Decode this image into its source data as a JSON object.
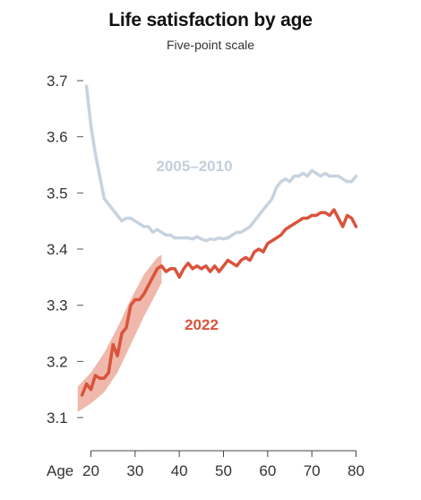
{
  "chart_data": {
    "type": "line",
    "title": "Life satisfaction by age",
    "subtitle": "Five-point scale",
    "xlabel": "Age",
    "ylabel": "",
    "xlim": [
      20,
      80
    ],
    "ylim": [
      3.1,
      3.7
    ],
    "xticks": [
      20,
      30,
      40,
      50,
      60,
      70,
      80
    ],
    "yticks": [
      "3.1",
      "3.2",
      "3.3",
      "3.4",
      "3.5",
      "3.6",
      "3.7"
    ],
    "grid": false,
    "legend": "direct labels",
    "series": [
      {
        "name": "2005–2010",
        "color": "#c7d3df",
        "x": [
          19,
          20,
          21,
          22,
          23,
          24,
          25,
          26,
          27,
          28,
          29,
          30,
          31,
          32,
          33,
          34,
          35,
          36,
          37,
          38,
          39,
          40,
          41,
          42,
          43,
          44,
          45,
          46,
          47,
          48,
          49,
          50,
          51,
          52,
          53,
          54,
          55,
          56,
          57,
          58,
          59,
          60,
          61,
          62,
          63,
          64,
          65,
          66,
          67,
          68,
          69,
          70,
          71,
          72,
          73,
          74,
          75,
          76,
          77,
          78,
          79,
          80
        ],
        "values": [
          3.69,
          3.62,
          3.57,
          3.53,
          3.49,
          3.48,
          3.47,
          3.46,
          3.45,
          3.455,
          3.455,
          3.45,
          3.445,
          3.44,
          3.44,
          3.43,
          3.435,
          3.43,
          3.425,
          3.425,
          3.42,
          3.42,
          3.42,
          3.42,
          3.418,
          3.422,
          3.418,
          3.415,
          3.418,
          3.417,
          3.42,
          3.418,
          3.42,
          3.425,
          3.43,
          3.43,
          3.435,
          3.44,
          3.45,
          3.46,
          3.47,
          3.48,
          3.49,
          3.51,
          3.52,
          3.525,
          3.52,
          3.53,
          3.53,
          3.535,
          3.53,
          3.54,
          3.535,
          3.53,
          3.535,
          3.53,
          3.53,
          3.53,
          3.525,
          3.52,
          3.52,
          3.53
        ]
      },
      {
        "name": "2022",
        "color": "#d9533c",
        "x": [
          18,
          19,
          20,
          21,
          22,
          23,
          24,
          25,
          26,
          27,
          28,
          29,
          30,
          31,
          32,
          33,
          34,
          35,
          36,
          37,
          38,
          39,
          40,
          41,
          42,
          43,
          44,
          45,
          46,
          47,
          48,
          49,
          50,
          51,
          52,
          53,
          54,
          55,
          56,
          57,
          58,
          59,
          60,
          61,
          62,
          63,
          64,
          65,
          66,
          67,
          68,
          69,
          70,
          71,
          72,
          73,
          74,
          75,
          76,
          77,
          78,
          79,
          80
        ],
        "values": [
          3.14,
          3.16,
          3.15,
          3.175,
          3.17,
          3.17,
          3.18,
          3.23,
          3.21,
          3.25,
          3.26,
          3.3,
          3.31,
          3.31,
          3.32,
          3.335,
          3.35,
          3.365,
          3.37,
          3.36,
          3.365,
          3.365,
          3.35,
          3.365,
          3.375,
          3.365,
          3.37,
          3.365,
          3.37,
          3.36,
          3.37,
          3.36,
          3.37,
          3.38,
          3.375,
          3.37,
          3.38,
          3.385,
          3.38,
          3.395,
          3.4,
          3.395,
          3.41,
          3.415,
          3.42,
          3.425,
          3.435,
          3.44,
          3.445,
          3.45,
          3.455,
          3.455,
          3.46,
          3.46,
          3.465,
          3.465,
          3.46,
          3.47,
          3.455,
          3.44,
          3.46,
          3.455,
          3.44
        ],
        "uncertainty_band": {
          "x": [
            17,
            20,
            23,
            26,
            29,
            32,
            35,
            36
          ],
          "lower": [
            3.11,
            3.125,
            3.145,
            3.18,
            3.23,
            3.28,
            3.325,
            3.34
          ],
          "upper": [
            3.155,
            3.18,
            3.215,
            3.26,
            3.31,
            3.355,
            3.385,
            3.39
          ]
        }
      }
    ]
  }
}
